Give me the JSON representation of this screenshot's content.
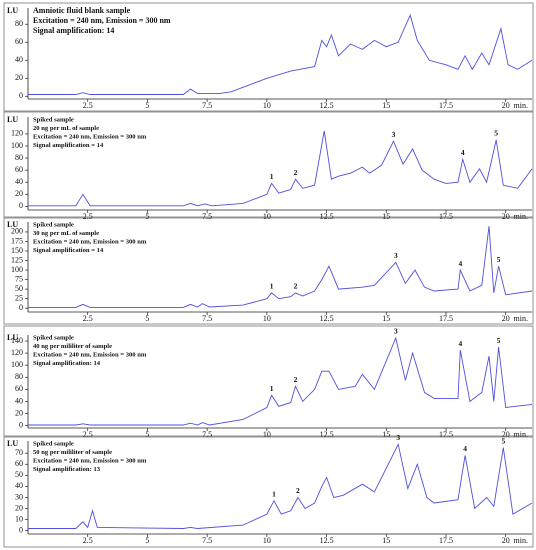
{
  "chart_data": [
    {
      "type": "line",
      "title": "Amniotic fluid blank sample",
      "annotations": [
        "Excitation = 240 nm, Emission = 300 nm",
        "Signal amplification: 14"
      ],
      "ylabel": "LU",
      "xlabel": "min.",
      "xlim": [
        0,
        21.1
      ],
      "xticks": [
        2.5,
        5,
        7.5,
        10,
        12.5,
        15,
        17.5,
        20
      ],
      "ylim": [
        -3,
        98
      ],
      "yticks": [
        0,
        20,
        40,
        60,
        80
      ],
      "series": [
        {
          "color": "#4f4fe0",
          "x": [
            0,
            2,
            2.3,
            2.6,
            6.5,
            6.8,
            7.1,
            8,
            8.5,
            9,
            10,
            11,
            12,
            12.3,
            12.5,
            12.7,
            13,
            13.5,
            14,
            14.5,
            15,
            15.5,
            16,
            16.3,
            16.8,
            17.5,
            18,
            18.3,
            18.6,
            19,
            19.3,
            19.8,
            20.1,
            20.5,
            21.1
          ],
          "values": [
            2,
            2,
            4,
            2,
            2,
            8,
            3,
            3,
            5,
            10,
            20,
            28,
            33,
            62,
            55,
            68,
            45,
            58,
            52,
            62,
            55,
            60,
            90,
            62,
            40,
            35,
            30,
            45,
            30,
            48,
            35,
            75,
            35,
            30,
            40
          ]
        }
      ],
      "peaks": []
    },
    {
      "type": "line",
      "title": "Spiked sample",
      "annotations": [
        "20 ng per mL of sample",
        "Excitation = 240 nm, Emission = 300 nm",
        "Signal amplification = 14"
      ],
      "ylabel": "LU",
      "xlabel": "min.",
      "xlim": [
        0,
        21.1
      ],
      "xticks": [
        2.5,
        5,
        7.5,
        10,
        12.5,
        15,
        17.5,
        20
      ],
      "ylim": [
        -6,
        148
      ],
      "yticks": [
        0,
        20,
        40,
        60,
        80,
        100,
        120
      ],
      "series": [
        {
          "color": "#4f4fe0",
          "x": [
            0,
            2,
            2.3,
            2.6,
            6.5,
            6.8,
            7.1,
            7.4,
            7.7,
            9,
            10,
            10.2,
            10.5,
            11,
            11.2,
            11.5,
            12,
            12.4,
            12.7,
            13,
            13.5,
            14,
            14.3,
            14.8,
            15.3,
            15.7,
            16.1,
            16.5,
            17,
            17.5,
            18,
            18.2,
            18.5,
            18.9,
            19.2,
            19.6,
            19.9,
            20.5,
            21.1
          ],
          "values": [
            1,
            1,
            20,
            1,
            1,
            5,
            1,
            4,
            1,
            5,
            20,
            38,
            22,
            28,
            45,
            30,
            35,
            125,
            45,
            50,
            55,
            65,
            55,
            68,
            108,
            70,
            95,
            60,
            45,
            38,
            40,
            78,
            40,
            62,
            40,
            110,
            35,
            30,
            62
          ]
        }
      ],
      "peaks": [
        {
          "label": "1",
          "x": 10.2
        },
        {
          "label": "2",
          "x": 11.2
        },
        {
          "label": "3",
          "x": 15.3
        },
        {
          "label": "4",
          "x": 18.2
        },
        {
          "label": "5",
          "x": 19.6
        }
      ]
    },
    {
      "type": "line",
      "title": "Spiked sample",
      "annotations": [
        "30 ng per mL of sample",
        "Excitation = 240 nm, Emission = 300 nm",
        "Signal amplification = 14"
      ],
      "ylabel": "LU",
      "xlabel": "min.",
      "xlim": [
        0,
        21.1
      ],
      "xticks": [
        2.5,
        5,
        7.5,
        10,
        12.5,
        15,
        17.5,
        20
      ],
      "ylim": [
        -10,
        226
      ],
      "yticks": [
        0,
        25,
        50,
        75,
        100,
        125,
        150,
        175,
        200
      ],
      "series": [
        {
          "color": "#4f4fe0",
          "x": [
            0,
            2,
            2.3,
            2.6,
            6.5,
            6.8,
            7.1,
            7.3,
            7.6,
            9,
            10,
            10.2,
            10.5,
            11,
            11.2,
            11.5,
            12,
            12.3,
            12.6,
            13,
            14,
            14.5,
            15.4,
            15.8,
            16.2,
            16.6,
            17,
            18,
            18.1,
            18.5,
            19,
            19.3,
            19.5,
            19.7,
            20,
            21.1
          ],
          "values": [
            2,
            2,
            10,
            2,
            2,
            10,
            3,
            12,
            3,
            8,
            25,
            40,
            25,
            30,
            40,
            32,
            45,
            75,
            110,
            50,
            55,
            60,
            120,
            65,
            100,
            55,
            45,
            50,
            100,
            45,
            60,
            215,
            40,
            110,
            35,
            45
          ]
        }
      ],
      "peaks": [
        {
          "label": "1",
          "x": 10.2
        },
        {
          "label": "2",
          "x": 11.2
        },
        {
          "label": "3",
          "x": 15.4
        },
        {
          "label": "4",
          "x": 18.1
        },
        {
          "label": "5",
          "x": 19.7
        }
      ]
    },
    {
      "type": "line",
      "title": "Spiked sample",
      "annotations": [
        "40 ng per mililiter of sample",
        "Excitation = 240 nm, Emission = 300 nm",
        "Signal amplification: 14"
      ],
      "ylabel": "LU",
      "xlabel": "min.",
      "xlim": [
        0,
        21.1
      ],
      "xticks": [
        2.5,
        5,
        7.5,
        10,
        12.5,
        15,
        17.5,
        20
      ],
      "ylim": [
        -4,
        150
      ],
      "yticks": [
        0,
        20,
        40,
        60,
        80,
        100,
        120,
        140
      ],
      "series": [
        {
          "color": "#4f4fe0",
          "x": [
            0,
            2,
            2.3,
            2.6,
            6.5,
            6.8,
            7.1,
            7.3,
            7.6,
            9,
            10,
            10.2,
            10.5,
            11,
            11.2,
            11.5,
            12,
            12.3,
            12.6,
            13,
            13.7,
            14,
            14.5,
            15.4,
            15.8,
            16.1,
            16.6,
            17,
            18,
            18.1,
            18.5,
            19,
            19.3,
            19.5,
            19.7,
            20,
            21.1
          ],
          "values": [
            1,
            1,
            3,
            1,
            1,
            4,
            1,
            5,
            1,
            10,
            30,
            50,
            32,
            38,
            65,
            40,
            60,
            90,
            90,
            60,
            65,
            85,
            60,
            145,
            75,
            120,
            55,
            45,
            45,
            125,
            40,
            55,
            115,
            40,
            130,
            30,
            35
          ]
        }
      ],
      "peaks": [
        {
          "label": "1",
          "x": 10.2
        },
        {
          "label": "2",
          "x": 11.2
        },
        {
          "label": "3",
          "x": 15.4
        },
        {
          "label": "4",
          "x": 18.1
        },
        {
          "label": "5",
          "x": 19.7
        }
      ]
    },
    {
      "type": "line",
      "title": "Spiked sample",
      "annotations": [
        "50 ng per mililiter of sample",
        "Excitation = 240 nm, Emission = 300 nm",
        "Signal amplification: 13"
      ],
      "ylabel": "LU",
      "xlabel": "min.",
      "xlim": [
        0,
        21.1
      ],
      "xticks": [
        2.5,
        5,
        7.5,
        10,
        12.5,
        15,
        17.5,
        20
      ],
      "ylim": [
        -3,
        81
      ],
      "yticks": [
        0,
        10,
        20,
        30,
        40,
        50,
        60,
        70
      ],
      "series": [
        {
          "color": "#4f4fe0",
          "x": [
            0,
            2,
            2.3,
            2.5,
            2.7,
            2.9,
            6.5,
            6.8,
            7.1,
            9,
            10,
            10.3,
            10.6,
            11,
            11.3,
            11.6,
            12,
            12.3,
            12.5,
            12.8,
            13.2,
            14,
            14.5,
            15.5,
            15.9,
            16.3,
            16.7,
            17,
            18,
            18.3,
            18.7,
            19.2,
            19.5,
            19.9,
            20.3,
            21.1
          ],
          "values": [
            2,
            2,
            8,
            3,
            18,
            3,
            2,
            3,
            2,
            5,
            15,
            27,
            15,
            18,
            30,
            20,
            25,
            40,
            48,
            30,
            32,
            42,
            35,
            78,
            38,
            60,
            30,
            25,
            28,
            68,
            20,
            30,
            22,
            75,
            15,
            25
          ]
        }
      ],
      "peaks": [
        {
          "label": "1",
          "x": 10.3
        },
        {
          "label": "2",
          "x": 11.3
        },
        {
          "label": "3",
          "x": 15.5
        },
        {
          "label": "4",
          "x": 18.3
        },
        {
          "label": "5",
          "x": 19.9
        }
      ]
    }
  ]
}
